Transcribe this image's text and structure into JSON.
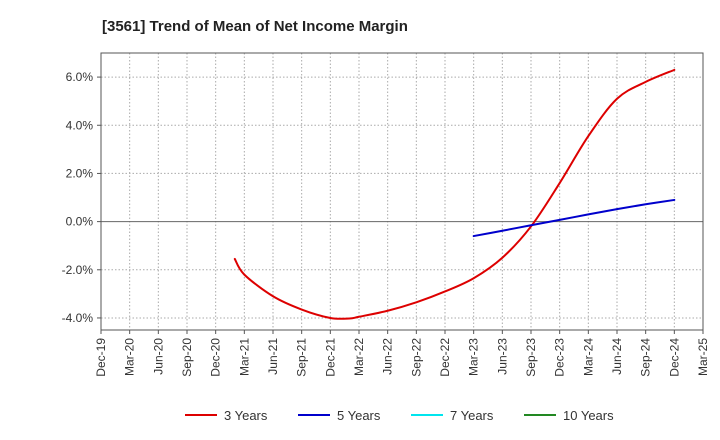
{
  "title": "[3561]  Trend of Mean of Net Income Margin",
  "chart_data": {
    "type": "line",
    "title": "[3561]  Trend of Mean of Net Income Margin",
    "xlabel": "",
    "ylabel": "",
    "x_ticks": [
      "Dec-19",
      "Mar-20",
      "Jun-20",
      "Sep-20",
      "Dec-20",
      "Mar-21",
      "Jun-21",
      "Sep-21",
      "Dec-21",
      "Mar-22",
      "Jun-22",
      "Sep-22",
      "Dec-22",
      "Mar-23",
      "Jun-23",
      "Sep-23",
      "Dec-23",
      "Mar-24",
      "Jun-24",
      "Sep-24",
      "Dec-24",
      "Mar-25"
    ],
    "y_ticks": [
      -4.0,
      -2.0,
      0.0,
      2.0,
      4.0,
      6.0
    ],
    "y_tick_labels": [
      "-4.0%",
      "-2.0%",
      "0.0%",
      "2.0%",
      "4.0%",
      "6.0%"
    ],
    "ylim": [
      -4.5,
      7.0
    ],
    "grid": true,
    "legend_position": "bottom",
    "series": [
      {
        "name": "3 Years",
        "color": "#dd0000",
        "x": [
          "Feb-21",
          "Mar-21",
          "Jun-21",
          "Sep-21",
          "Dec-21",
          "Feb-22",
          "Mar-22",
          "Jun-22",
          "Sep-22",
          "Dec-22",
          "Mar-23",
          "Jun-23",
          "Sep-23",
          "Dec-23",
          "Mar-24",
          "Jun-24",
          "Sep-24",
          "Dec-24"
        ],
        "values": [
          -1.55,
          -2.2,
          -3.1,
          -3.65,
          -4.0,
          -4.02,
          -3.95,
          -3.7,
          -3.35,
          -2.9,
          -2.35,
          -1.5,
          -0.2,
          1.6,
          3.55,
          5.1,
          5.8,
          6.3
        ]
      },
      {
        "name": "5 Years",
        "color": "#0000cc",
        "x": [
          "Mar-23",
          "Jun-23",
          "Sep-23",
          "Dec-23",
          "Mar-24",
          "Jun-24",
          "Sep-24",
          "Dec-24"
        ],
        "values": [
          -0.6,
          -0.38,
          -0.15,
          0.07,
          0.3,
          0.52,
          0.72,
          0.9
        ]
      },
      {
        "name": "7 Years",
        "color": "#00e5ee",
        "x": [],
        "values": []
      },
      {
        "name": "10 Years",
        "color": "#228822",
        "x": [],
        "values": []
      }
    ]
  }
}
